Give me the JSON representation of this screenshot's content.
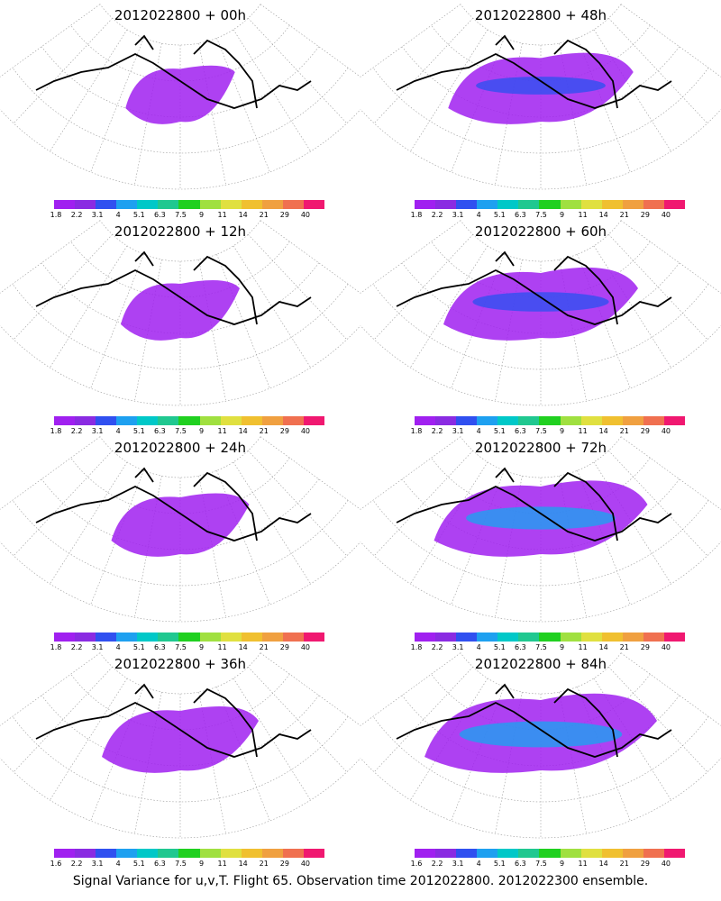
{
  "caption": "Signal Variance for u,v,T. Flight 65. Observation time 2012022800. 2012022300 ensemble.",
  "panels": [
    {
      "title": "2012022800 + 00h",
      "legend_labels": [
        "1.8",
        "2.2",
        "3.1",
        "4",
        "5.1",
        "6.3",
        "7.5",
        "9",
        "11",
        "14",
        "21",
        "29",
        "40"
      ]
    },
    {
      "title": "2012022800 + 48h",
      "legend_labels": [
        "1.8",
        "2.2",
        "3.1",
        "4",
        "5.1",
        "6.3",
        "7.5",
        "9",
        "11",
        "14",
        "21",
        "29",
        "40"
      ]
    },
    {
      "title": "2012022800 + 12h",
      "legend_labels": [
        "1.8",
        "2.2",
        "3.1",
        "4",
        "5.1",
        "6.3",
        "7.5",
        "9",
        "11",
        "14",
        "21",
        "29",
        "40"
      ]
    },
    {
      "title": "2012022800 + 60h",
      "legend_labels": [
        "1.8",
        "2.2",
        "3.1",
        "4",
        "5.1",
        "6.3",
        "7.5",
        "9",
        "11",
        "14",
        "21",
        "29",
        "40"
      ]
    },
    {
      "title": "2012022800 + 24h",
      "legend_labels": [
        "1.8",
        "2.2",
        "3.1",
        "4",
        "5.1",
        "6.3",
        "7.5",
        "9",
        "11",
        "14",
        "21",
        "29",
        "40"
      ]
    },
    {
      "title": "2012022800 + 72h",
      "legend_labels": [
        "1.8",
        "2.2",
        "3.1",
        "4",
        "5.1",
        "6.3",
        "7.5",
        "9",
        "11",
        "14",
        "21",
        "29",
        "40"
      ]
    },
    {
      "title": "2012022800 + 36h",
      "legend_labels": [
        "1.6",
        "2.2",
        "3.1",
        "4",
        "5.1",
        "6.3",
        "7.5",
        "9",
        "11",
        "14",
        "21",
        "29",
        "40"
      ]
    },
    {
      "title": "2012022800 + 84h",
      "legend_labels": [
        "1.6",
        "2.2",
        "3.1",
        "4",
        "5.1",
        "6.3",
        "7.5",
        "9",
        "11",
        "14",
        "21",
        "29",
        "40"
      ]
    }
  ],
  "legend_colors": [
    "#a020f0",
    "#8a2be2",
    "#3050f0",
    "#1ea0f0",
    "#00c8c8",
    "#20c890",
    "#20d020",
    "#a0e040",
    "#e0e040",
    "#f0c030",
    "#f0a040",
    "#f07050",
    "#f01870"
  ]
}
